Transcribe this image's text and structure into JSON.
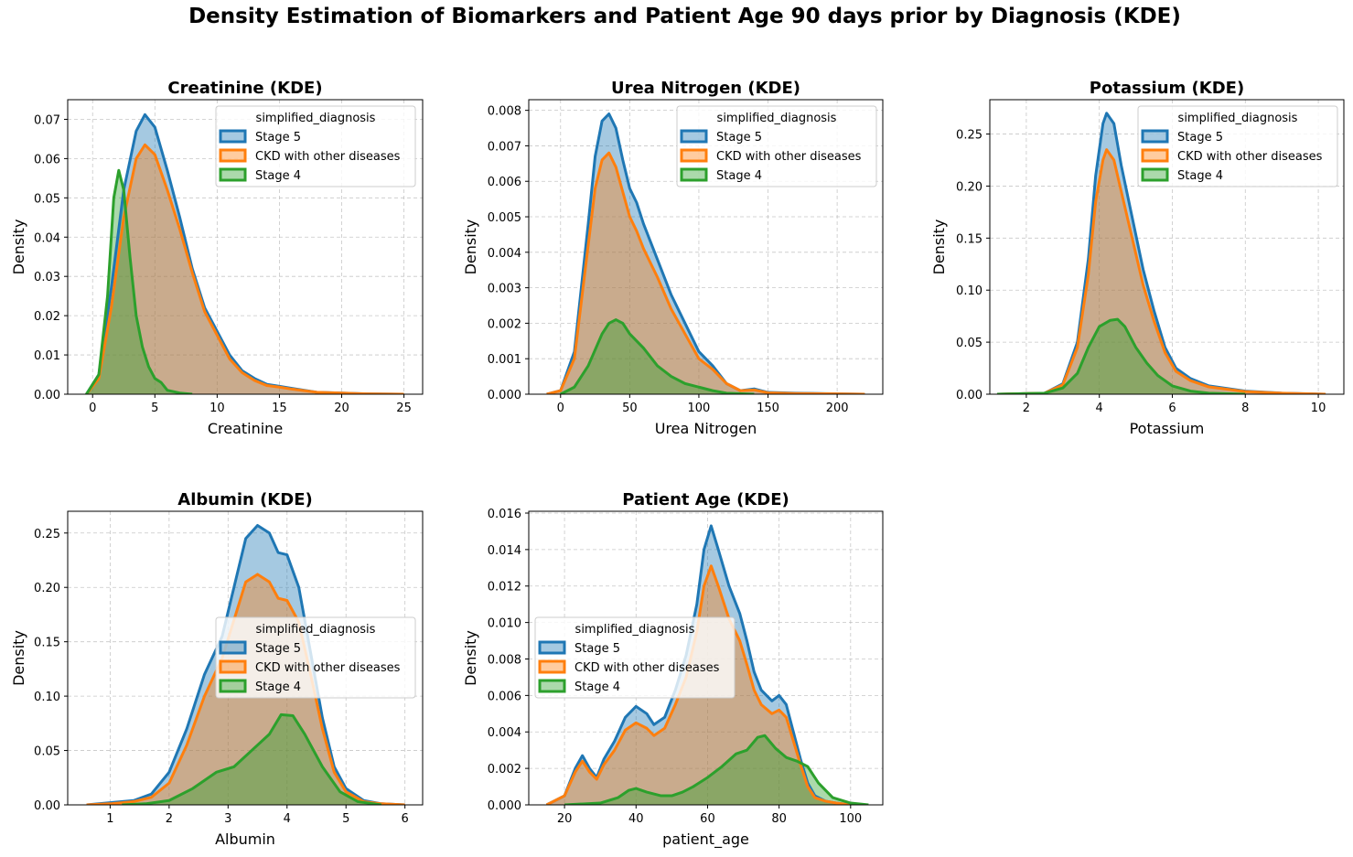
{
  "figure": {
    "title": "Density Estimation of Biomarkers and Patient Age 90 days prior by Diagnosis (KDE)"
  },
  "colors": {
    "Stage 5": "#1f77b4",
    "CKD with other diseases": "#ff7f0e",
    "Stage 4": "#2ca02c"
  },
  "chart_data": [
    {
      "type": "area",
      "title": "Creatinine (KDE)",
      "xlabel": "Creatinine",
      "ylabel": "Density",
      "xlim": [
        -2,
        26.5
      ],
      "ylim": [
        0,
        0.075
      ],
      "xticks": [
        0,
        5,
        10,
        15,
        20,
        25
      ],
      "xtick_labels": [
        "0",
        "5",
        "10",
        "15",
        "20",
        "25"
      ],
      "yticks": [
        0,
        0.01,
        0.02,
        0.03,
        0.04,
        0.05,
        0.06,
        0.07
      ],
      "ytick_labels": [
        "0.00",
        "0.01",
        "0.02",
        "0.03",
        "0.04",
        "0.05",
        "0.06",
        "0.07"
      ],
      "grid": true,
      "legend": {
        "title": "simplified_diagnosis",
        "placement": "upper right",
        "entries": [
          "Stage 5",
          "CKD with other diseases",
          "Stage 4"
        ]
      },
      "series": [
        {
          "name": "Stage 5",
          "x": [
            -0.5,
            0.5,
            1.5,
            2.5,
            3.5,
            4.2,
            5,
            6,
            7,
            8,
            9,
            10,
            11,
            12,
            13,
            14,
            15,
            16,
            17,
            18,
            20,
            22,
            25
          ],
          "y": [
            0,
            0.005,
            0.027,
            0.052,
            0.067,
            0.0712,
            0.068,
            0.057,
            0.045,
            0.032,
            0.022,
            0.016,
            0.01,
            0.006,
            0.004,
            0.0025,
            0.002,
            0.0015,
            0.001,
            0.0005,
            0.0003,
            0.0001,
            0
          ]
        },
        {
          "name": "CKD with other diseases",
          "x": [
            -0.5,
            0.5,
            1.5,
            2.5,
            3.5,
            4.2,
            5,
            6,
            7,
            8,
            9,
            10,
            11,
            12,
            13,
            14,
            15,
            16,
            17,
            18,
            20,
            22,
            25
          ],
          "y": [
            0,
            0.004,
            0.022,
            0.045,
            0.06,
            0.0635,
            0.061,
            0.052,
            0.042,
            0.031,
            0.021,
            0.015,
            0.009,
            0.0055,
            0.0035,
            0.0022,
            0.0018,
            0.0013,
            0.0009,
            0.0005,
            0.0003,
            0.0001,
            0
          ]
        },
        {
          "name": "Stage 4",
          "x": [
            -0.5,
            0.5,
            1.2,
            1.7,
            2.1,
            2.5,
            3,
            3.5,
            4,
            4.5,
            5,
            5.5,
            6,
            7,
            8
          ],
          "y": [
            0,
            0.005,
            0.025,
            0.05,
            0.057,
            0.052,
            0.035,
            0.02,
            0.012,
            0.007,
            0.004,
            0.003,
            0.001,
            0.0003,
            0
          ]
        }
      ]
    },
    {
      "type": "area",
      "title": "Urea Nitrogen (KDE)",
      "xlabel": "Urea Nitrogen",
      "ylabel": "Density",
      "xlim": [
        -23,
        233
      ],
      "ylim": [
        0,
        0.0083
      ],
      "xticks": [
        0,
        50,
        100,
        150,
        200
      ],
      "xtick_labels": [
        "0",
        "50",
        "100",
        "150",
        "200"
      ],
      "yticks": [
        0,
        0.001,
        0.002,
        0.003,
        0.004,
        0.005,
        0.006,
        0.007,
        0.008
      ],
      "ytick_labels": [
        "0.000",
        "0.001",
        "0.002",
        "0.003",
        "0.004",
        "0.005",
        "0.006",
        "0.007",
        "0.008"
      ],
      "grid": true,
      "legend": {
        "title": "simplified_diagnosis",
        "placement": "upper right",
        "entries": [
          "Stage 5",
          "CKD with other diseases",
          "Stage 4"
        ]
      },
      "series": [
        {
          "name": "Stage 5",
          "x": [
            -10,
            0,
            10,
            20,
            25,
            30,
            35,
            40,
            45,
            50,
            55,
            60,
            70,
            80,
            90,
            100,
            110,
            120,
            130,
            140,
            150,
            170,
            200,
            220
          ],
          "y": [
            0,
            0.0001,
            0.0012,
            0.0048,
            0.0067,
            0.0077,
            0.0079,
            0.0075,
            0.0066,
            0.0058,
            0.0054,
            0.0048,
            0.0038,
            0.0028,
            0.002,
            0.0012,
            0.0008,
            0.0003,
            0.0001,
            0.00015,
            5e-05,
            3e-05,
            1e-05,
            0
          ]
        },
        {
          "name": "CKD with other diseases",
          "x": [
            -10,
            0,
            10,
            20,
            25,
            30,
            35,
            40,
            45,
            50,
            55,
            60,
            70,
            80,
            90,
            100,
            110,
            120,
            130,
            140,
            150,
            170,
            200,
            220
          ],
          "y": [
            0,
            0.0001,
            0.001,
            0.0042,
            0.0058,
            0.0066,
            0.0068,
            0.0064,
            0.0057,
            0.005,
            0.0046,
            0.0041,
            0.0033,
            0.0024,
            0.0017,
            0.001,
            0.0007,
            0.0003,
            0.0001,
            0.00012,
            4e-05,
            2e-05,
            1e-05,
            0
          ]
        },
        {
          "name": "Stage 4",
          "x": [
            0,
            10,
            20,
            30,
            35,
            40,
            45,
            50,
            55,
            60,
            70,
            80,
            90,
            100,
            110,
            120,
            140
          ],
          "y": [
            0,
            0.0002,
            0.0008,
            0.0017,
            0.002,
            0.0021,
            0.002,
            0.0017,
            0.0015,
            0.0013,
            0.0008,
            0.0005,
            0.0003,
            0.0002,
            0.0001,
            3e-05,
            0
          ]
        }
      ]
    },
    {
      "type": "area",
      "title": "Potassium (KDE)",
      "xlabel": "Potassium",
      "ylabel": "Density",
      "xlim": [
        1,
        10.7
      ],
      "ylim": [
        0,
        0.283
      ],
      "xticks": [
        2,
        4,
        6,
        8,
        10
      ],
      "xtick_labels": [
        "2",
        "4",
        "6",
        "8",
        "10"
      ],
      "yticks": [
        0,
        0.05,
        0.1,
        0.15,
        0.2,
        0.25
      ],
      "ytick_labels": [
        "0.00",
        "0.05",
        "0.10",
        "0.15",
        "0.20",
        "0.25"
      ],
      "grid": true,
      "legend": {
        "title": "simplified_diagnosis",
        "placement": "upper right",
        "entries": [
          "Stage 5",
          "CKD with other diseases",
          "Stage 4"
        ]
      },
      "series": [
        {
          "name": "Stage 5",
          "x": [
            1.2,
            2.5,
            3,
            3.4,
            3.7,
            3.9,
            4.1,
            4.2,
            4.4,
            4.6,
            4.9,
            5.2,
            5.5,
            5.8,
            6.1,
            6.5,
            7,
            8,
            9,
            10.2
          ],
          "y": [
            0,
            0.001,
            0.01,
            0.05,
            0.13,
            0.21,
            0.26,
            0.27,
            0.26,
            0.22,
            0.17,
            0.12,
            0.08,
            0.045,
            0.025,
            0.015,
            0.008,
            0.003,
            0.001,
            0
          ]
        },
        {
          "name": "CKD with other diseases",
          "x": [
            1.2,
            2.5,
            3,
            3.4,
            3.7,
            3.9,
            4.1,
            4.2,
            4.4,
            4.6,
            4.9,
            5.2,
            5.5,
            5.8,
            6.1,
            6.5,
            7,
            8,
            9,
            10.2
          ],
          "y": [
            0,
            0.001,
            0.009,
            0.045,
            0.115,
            0.185,
            0.225,
            0.235,
            0.225,
            0.195,
            0.15,
            0.105,
            0.07,
            0.04,
            0.022,
            0.013,
            0.007,
            0.0025,
            0.001,
            0
          ]
        },
        {
          "name": "Stage 4",
          "x": [
            1.2,
            2.5,
            3,
            3.4,
            3.7,
            4,
            4.3,
            4.5,
            4.7,
            5,
            5.3,
            5.6,
            6,
            6.5,
            7,
            8
          ],
          "y": [
            0,
            0.001,
            0.006,
            0.02,
            0.045,
            0.065,
            0.071,
            0.072,
            0.065,
            0.045,
            0.03,
            0.018,
            0.008,
            0.003,
            0.001,
            0
          ]
        }
      ]
    },
    {
      "type": "area",
      "title": "Albumin (KDE)",
      "xlabel": "Albumin",
      "ylabel": "Density",
      "xlim": [
        0.28,
        6.3
      ],
      "ylim": [
        0,
        0.27
      ],
      "xticks": [
        1,
        2,
        3,
        4,
        5,
        6
      ],
      "xtick_labels": [
        "1",
        "2",
        "3",
        "4",
        "5",
        "6"
      ],
      "yticks": [
        0,
        0.05,
        0.1,
        0.15,
        0.2,
        0.25
      ],
      "ytick_labels": [
        "0.00",
        "0.05",
        "0.10",
        "0.15",
        "0.20",
        "0.25"
      ],
      "grid": true,
      "legend": {
        "title": "simplified_diagnosis",
        "placement": "center right",
        "entries": [
          "Stage 5",
          "CKD with other diseases",
          "Stage 4"
        ]
      },
      "series": [
        {
          "name": "Stage 5",
          "x": [
            0.6,
            1,
            1.4,
            1.7,
            2,
            2.3,
            2.6,
            2.9,
            3.1,
            3.3,
            3.5,
            3.7,
            3.85,
            4,
            4.2,
            4.4,
            4.6,
            4.8,
            5,
            5.3,
            5.6,
            6
          ],
          "y": [
            0,
            0.002,
            0.004,
            0.01,
            0.03,
            0.07,
            0.12,
            0.155,
            0.2,
            0.245,
            0.257,
            0.25,
            0.232,
            0.23,
            0.2,
            0.14,
            0.08,
            0.035,
            0.015,
            0.004,
            0.001,
            0
          ]
        },
        {
          "name": "CKD with other diseases",
          "x": [
            0.6,
            1,
            1.4,
            1.7,
            2,
            2.3,
            2.6,
            2.9,
            3.1,
            3.3,
            3.5,
            3.7,
            3.85,
            4,
            4.2,
            4.4,
            4.6,
            4.8,
            5,
            5.3,
            5.6,
            6
          ],
          "y": [
            0,
            0.001,
            0.003,
            0.007,
            0.02,
            0.055,
            0.1,
            0.135,
            0.17,
            0.205,
            0.212,
            0.205,
            0.19,
            0.188,
            0.168,
            0.12,
            0.07,
            0.03,
            0.012,
            0.003,
            0.001,
            0
          ]
        },
        {
          "name": "Stage 4",
          "x": [
            1.2,
            1.6,
            2,
            2.4,
            2.8,
            3.1,
            3.4,
            3.7,
            3.9,
            4.1,
            4.3,
            4.6,
            4.9,
            5.2,
            5.6
          ],
          "y": [
            0,
            0.001,
            0.004,
            0.015,
            0.03,
            0.035,
            0.05,
            0.065,
            0.083,
            0.082,
            0.065,
            0.035,
            0.012,
            0.003,
            0
          ]
        }
      ]
    },
    {
      "type": "area",
      "title": "Patient Age (KDE)",
      "xlabel": "patient_age",
      "ylabel": "Density",
      "xlim": [
        10,
        109
      ],
      "ylim": [
        0,
        0.0161
      ],
      "xticks": [
        20,
        40,
        60,
        80,
        100
      ],
      "xtick_labels": [
        "20",
        "40",
        "60",
        "80",
        "100"
      ],
      "yticks": [
        0,
        0.002,
        0.004,
        0.006,
        0.008,
        0.01,
        0.012,
        0.014,
        0.016
      ],
      "ytick_labels": [
        "0.000",
        "0.002",
        "0.004",
        "0.006",
        "0.008",
        "0.010",
        "0.012",
        "0.014",
        "0.016"
      ],
      "grid": true,
      "legend": {
        "title": "simplified_diagnosis",
        "placement": "center left",
        "entries": [
          "Stage 5",
          "CKD with other diseases",
          "Stage 4"
        ]
      },
      "series": [
        {
          "name": "Stage 5",
          "x": [
            15,
            20,
            23,
            25,
            27,
            29,
            31,
            34,
            37,
            40,
            43,
            45,
            48,
            51,
            54,
            57,
            59,
            61,
            63,
            66,
            69,
            71,
            73,
            75,
            78,
            80,
            82,
            84,
            86,
            88,
            90,
            93,
            96,
            100
          ],
          "y": [
            0,
            0.0005,
            0.002,
            0.0027,
            0.002,
            0.0015,
            0.0025,
            0.0035,
            0.0048,
            0.0054,
            0.005,
            0.0044,
            0.0048,
            0.0063,
            0.0082,
            0.011,
            0.014,
            0.0153,
            0.014,
            0.012,
            0.0105,
            0.009,
            0.0073,
            0.0063,
            0.0057,
            0.006,
            0.0055,
            0.004,
            0.0025,
            0.0012,
            0.0005,
            0.0002,
            0.0001,
            0
          ]
        },
        {
          "name": "CKD with other diseases",
          "x": [
            15,
            20,
            23,
            25,
            27,
            29,
            31,
            34,
            37,
            40,
            43,
            45,
            48,
            51,
            54,
            57,
            59,
            61,
            63,
            66,
            69,
            71,
            73,
            75,
            78,
            80,
            82,
            84,
            86,
            88,
            90,
            93,
            96,
            100
          ],
          "y": [
            0,
            0.0005,
            0.0018,
            0.0024,
            0.0018,
            0.0014,
            0.0022,
            0.003,
            0.0041,
            0.0045,
            0.0042,
            0.0038,
            0.0042,
            0.0055,
            0.007,
            0.0095,
            0.012,
            0.0131,
            0.012,
            0.0102,
            0.009,
            0.0077,
            0.0063,
            0.0055,
            0.005,
            0.0052,
            0.0048,
            0.0035,
            0.0022,
            0.001,
            0.0004,
            0.0002,
            0.0001,
            0
          ]
        },
        {
          "name": "Stage 4",
          "x": [
            20,
            30,
            35,
            38,
            40,
            43,
            47,
            50,
            53,
            56,
            60,
            64,
            68,
            71,
            74,
            76,
            79,
            82,
            85,
            88,
            91,
            95,
            100,
            105
          ],
          "y": [
            0,
            0.0001,
            0.0004,
            0.0008,
            0.0009,
            0.0007,
            0.0005,
            0.0005,
            0.0007,
            0.001,
            0.0015,
            0.0021,
            0.0028,
            0.003,
            0.0037,
            0.0038,
            0.0031,
            0.0026,
            0.0024,
            0.0021,
            0.0012,
            0.0004,
            0.0001,
            0
          ]
        }
      ]
    }
  ]
}
